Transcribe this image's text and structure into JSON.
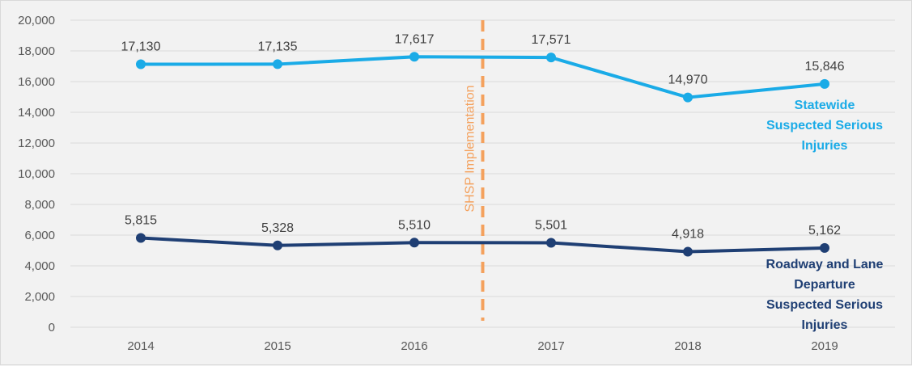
{
  "chart_data": {
    "type": "line",
    "categories": [
      "2014",
      "2015",
      "2016",
      "2017",
      "2018",
      "2019"
    ],
    "series": [
      {
        "name": "Statewide Suspected Serious Injuries",
        "label_lines": [
          "Statewide",
          "Suspected Serious",
          "Injuries"
        ],
        "values": [
          17130,
          17135,
          17617,
          17571,
          14970,
          15846
        ],
        "value_labels": [
          "17,130",
          "17,135",
          "17,617",
          "17,571",
          "14,970",
          "15,846"
        ],
        "color": "#1aabe7"
      },
      {
        "name": "Roadway and Lane Departure Suspected Serious Injuries",
        "label_lines": [
          "Roadway and Lane",
          "Departure",
          "Suspected Serious",
          "Injuries"
        ],
        "values": [
          5815,
          5328,
          5510,
          5501,
          4918,
          5162
        ],
        "value_labels": [
          "5,815",
          "5,328",
          "5,510",
          "5,501",
          "4,918",
          "5,162"
        ],
        "color": "#1f3f74"
      }
    ],
    "ylim": [
      0,
      20000
    ],
    "yticks": [
      0,
      2000,
      4000,
      6000,
      8000,
      10000,
      12000,
      14000,
      16000,
      18000,
      20000
    ],
    "ytick_labels": [
      "0",
      "2,000",
      "4,000",
      "6,000",
      "8,000",
      "10,000",
      "12,000",
      "14,000",
      "16,000",
      "18,000",
      "20,000"
    ],
    "grid": true,
    "annotation": {
      "text": "SHSP Implementation",
      "position_between": [
        "2016",
        "2017"
      ],
      "color": "#f4a15d"
    },
    "axis_text_color": "#595959",
    "grid_color": "#d9d9d9"
  }
}
